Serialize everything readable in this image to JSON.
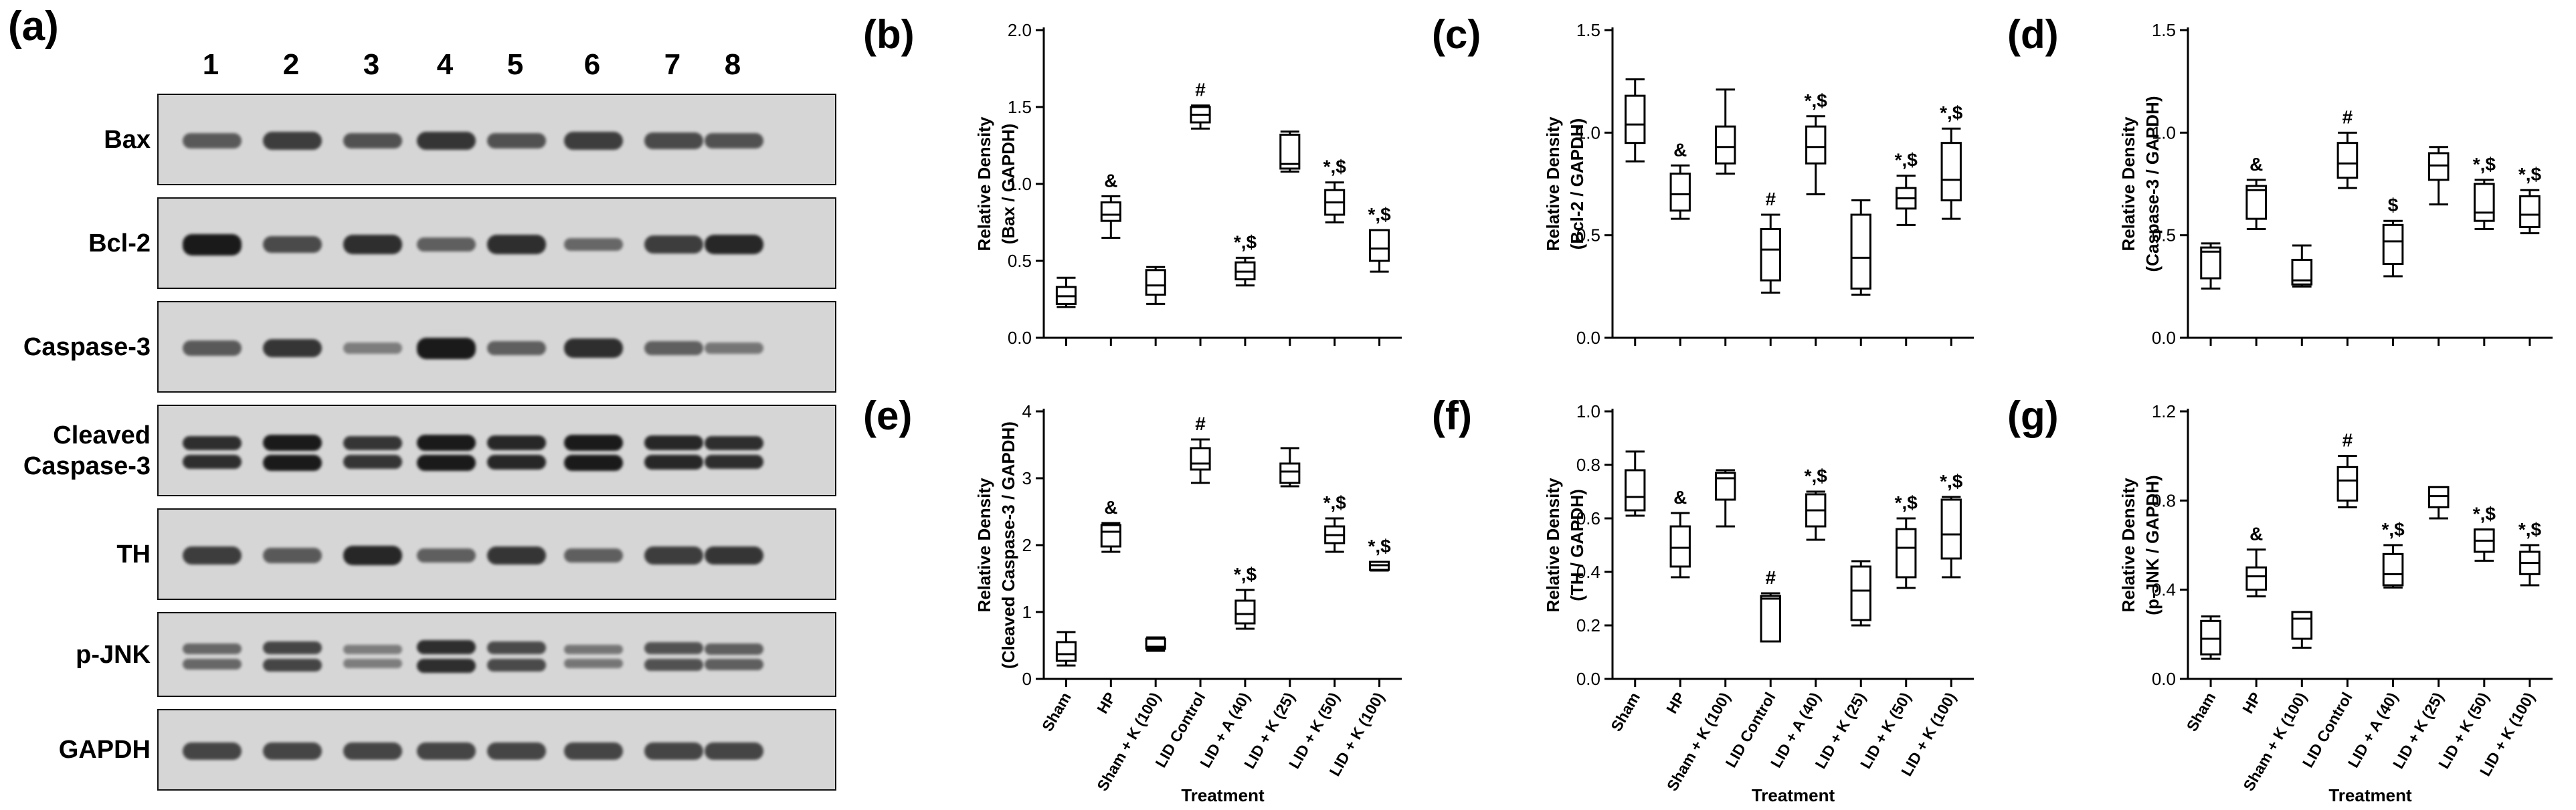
{
  "panel_labels": [
    "(a)",
    "(b)",
    "(c)",
    "(d)",
    "(e)",
    "(f)",
    "(g)"
  ],
  "western_blot": {
    "lanes": [
      "1",
      "2",
      "3",
      "4",
      "5",
      "6",
      "7",
      "8"
    ],
    "rows": [
      {
        "label": "Bax",
        "intensity": [
          0.55,
          0.75,
          0.6,
          0.8,
          0.6,
          0.75,
          0.65,
          0.6
        ]
      },
      {
        "label": "Bcl-2",
        "intensity": [
          1.0,
          0.65,
          0.85,
          0.5,
          0.85,
          0.45,
          0.75,
          0.9
        ]
      },
      {
        "label": "Caspase-3",
        "intensity": [
          0.55,
          0.8,
          0.3,
          1.0,
          0.5,
          0.85,
          0.5,
          0.35
        ]
      },
      {
        "label": "Cleaved\nCaspase-3",
        "intensity": [
          0.85,
          1.0,
          0.8,
          1.0,
          0.9,
          1.0,
          0.9,
          0.85
        ],
        "double": true
      },
      {
        "label": "TH",
        "intensity": [
          0.75,
          0.55,
          0.9,
          0.5,
          0.8,
          0.5,
          0.75,
          0.8
        ]
      },
      {
        "label": "p-JNK",
        "intensity": [
          0.45,
          0.7,
          0.3,
          0.85,
          0.65,
          0.35,
          0.6,
          0.5
        ],
        "double": true
      },
      {
        "label": "GAPDH",
        "intensity": [
          0.7,
          0.7,
          0.7,
          0.7,
          0.7,
          0.7,
          0.7,
          0.7
        ]
      }
    ]
  },
  "chart_data": [
    {
      "panel": "(b)",
      "type": "box",
      "ylabel": "Relative Density\n(Bax / GAPDH)",
      "xlabel": "",
      "ylim": [
        0,
        2.0
      ],
      "yticks": [
        "0.0",
        "0.5",
        "1.0",
        "1.5",
        "2.0"
      ],
      "categories": [
        "Sham",
        "HP",
        "Sham + K (100)",
        "LID Control",
        "LID + A (40)",
        "LID + K (25)",
        "LID + K (50)",
        "LID + K (100)"
      ],
      "boxes": [
        {
          "min": 0.2,
          "q1": 0.22,
          "median": 0.27,
          "q3": 0.33,
          "max": 0.39
        },
        {
          "min": 0.65,
          "q1": 0.76,
          "median": 0.8,
          "q3": 0.88,
          "max": 0.92
        },
        {
          "min": 0.22,
          "q1": 0.28,
          "median": 0.34,
          "q3": 0.44,
          "max": 0.46
        },
        {
          "min": 1.36,
          "q1": 1.4,
          "median": 1.45,
          "q3": 1.5,
          "max": 1.51
        },
        {
          "min": 0.34,
          "q1": 0.38,
          "median": 0.43,
          "q3": 0.49,
          "max": 0.52
        },
        {
          "min": 1.08,
          "q1": 1.1,
          "median": 1.13,
          "q3": 1.32,
          "max": 1.34
        },
        {
          "min": 0.75,
          "q1": 0.8,
          "median": 0.88,
          "q3": 0.96,
          "max": 1.01
        },
        {
          "min": 0.43,
          "q1": 0.5,
          "median": 0.58,
          "q3": 0.7,
          "max": 0.7
        }
      ],
      "markers": [
        "",
        "&",
        "",
        "#",
        "*,$",
        "",
        "*,$",
        "*,$"
      ]
    },
    {
      "panel": "(c)",
      "type": "box",
      "ylabel": "Relative Density\n(Bcl-2 / GAPDH)",
      "xlabel": "",
      "ylim": [
        0,
        1.5
      ],
      "yticks": [
        "0.0",
        "0.5",
        "1.0",
        "1.5"
      ],
      "categories": [
        "Sham",
        "HP",
        "Sham + K (100)",
        "LID Control",
        "LID + A (40)",
        "LID + K (25)",
        "LID + K (50)",
        "LID + K (100)"
      ],
      "boxes": [
        {
          "min": 0.86,
          "q1": 0.95,
          "median": 1.04,
          "q3": 1.18,
          "max": 1.26
        },
        {
          "min": 0.58,
          "q1": 0.62,
          "median": 0.7,
          "q3": 0.8,
          "max": 0.84
        },
        {
          "min": 0.8,
          "q1": 0.85,
          "median": 0.93,
          "q3": 1.03,
          "max": 1.21
        },
        {
          "min": 0.22,
          "q1": 0.28,
          "median": 0.43,
          "q3": 0.53,
          "max": 0.6
        },
        {
          "min": 0.7,
          "q1": 0.85,
          "median": 0.93,
          "q3": 1.03,
          "max": 1.08
        },
        {
          "min": 0.21,
          "q1": 0.24,
          "median": 0.39,
          "q3": 0.6,
          "max": 0.67
        },
        {
          "min": 0.55,
          "q1": 0.63,
          "median": 0.68,
          "q3": 0.73,
          "max": 0.79
        },
        {
          "min": 0.58,
          "q1": 0.67,
          "median": 0.77,
          "q3": 0.95,
          "max": 1.02
        }
      ],
      "markers": [
        "",
        "&",
        "",
        "#",
        "*,$",
        "",
        "*,$",
        "*,$"
      ]
    },
    {
      "panel": "(d)",
      "type": "box",
      "ylabel": "Relative Density\n(Caspase-3 / GAPDH)",
      "xlabel": "",
      "ylim": [
        0,
        1.5
      ],
      "yticks": [
        "0.0",
        "0.5",
        "1.0",
        "1.5"
      ],
      "categories": [
        "Sham",
        "HP",
        "Sham + K (100)",
        "LID Control",
        "LID + A (40)",
        "LID + K (25)",
        "LID + K (50)",
        "LID + K (100)"
      ],
      "boxes": [
        {
          "min": 0.24,
          "q1": 0.29,
          "median": 0.42,
          "q3": 0.44,
          "max": 0.46
        },
        {
          "min": 0.53,
          "q1": 0.58,
          "median": 0.72,
          "q3": 0.74,
          "max": 0.77
        },
        {
          "min": 0.25,
          "q1": 0.26,
          "median": 0.28,
          "q3": 0.38,
          "max": 0.45
        },
        {
          "min": 0.73,
          "q1": 0.78,
          "median": 0.85,
          "q3": 0.95,
          "max": 1.0
        },
        {
          "min": 0.3,
          "q1": 0.36,
          "median": 0.47,
          "q3": 0.55,
          "max": 0.57
        },
        {
          "min": 0.65,
          "q1": 0.77,
          "median": 0.84,
          "q3": 0.9,
          "max": 0.93
        },
        {
          "min": 0.53,
          "q1": 0.57,
          "median": 0.61,
          "q3": 0.75,
          "max": 0.77
        },
        {
          "min": 0.51,
          "q1": 0.54,
          "median": 0.6,
          "q3": 0.69,
          "max": 0.72
        }
      ],
      "markers": [
        "",
        "&",
        "",
        "#",
        "$",
        "",
        "*,$",
        "*,$"
      ]
    },
    {
      "panel": "(e)",
      "type": "box",
      "ylabel": "Relative Density\n(Cleaved Caspase-3 / GAPDH)",
      "xlabel": "Treatment",
      "ylim": [
        0,
        4
      ],
      "yticks": [
        "0",
        "1",
        "2",
        "3",
        "4"
      ],
      "categories": [
        "Sham",
        "HP",
        "Sham + K (100)",
        "LID Control",
        "LID + A (40)",
        "LID + K (25)",
        "LID + K (50)",
        "LID + K (100)"
      ],
      "boxes": [
        {
          "min": 0.2,
          "q1": 0.27,
          "median": 0.37,
          "q3": 0.55,
          "max": 0.7
        },
        {
          "min": 1.9,
          "q1": 1.98,
          "median": 2.2,
          "q3": 2.3,
          "max": 2.33
        },
        {
          "min": 0.42,
          "q1": 0.45,
          "median": 0.48,
          "q3": 0.6,
          "max": 0.62
        },
        {
          "min": 2.93,
          "q1": 3.13,
          "median": 3.22,
          "q3": 3.45,
          "max": 3.58
        },
        {
          "min": 0.75,
          "q1": 0.83,
          "median": 0.97,
          "q3": 1.17,
          "max": 1.33
        },
        {
          "min": 2.88,
          "q1": 2.93,
          "median": 3.1,
          "q3": 3.22,
          "max": 3.45
        },
        {
          "min": 1.9,
          "q1": 2.03,
          "median": 2.15,
          "q3": 2.28,
          "max": 2.4
        },
        {
          "min": 1.62,
          "q1": 1.63,
          "median": 1.7,
          "q3": 1.75,
          "max": 1.75
        }
      ],
      "markers": [
        "",
        "&",
        "",
        "#",
        "*,$",
        "",
        "*,$",
        "*,$"
      ]
    },
    {
      "panel": "(f)",
      "type": "box",
      "ylabel": "Relative Density\n(TH / GAPDH)",
      "xlabel": "Treatment",
      "ylim": [
        0,
        1.0
      ],
      "yticks": [
        "0.0",
        "0.2",
        "0.4",
        "0.6",
        "0.8",
        "1.0"
      ],
      "categories": [
        "Sham",
        "HP",
        "Sham + K (100)",
        "LID Control",
        "LID + A (40)",
        "LID + K (25)",
        "LID + K (50)",
        "LID + K (100)"
      ],
      "boxes": [
        {
          "min": 0.61,
          "q1": 0.63,
          "median": 0.68,
          "q3": 0.78,
          "max": 0.85
        },
        {
          "min": 0.38,
          "q1": 0.42,
          "median": 0.49,
          "q3": 0.57,
          "max": 0.62
        },
        {
          "min": 0.57,
          "q1": 0.67,
          "median": 0.75,
          "q3": 0.77,
          "max": 0.78
        },
        {
          "min": 0.14,
          "q1": 0.14,
          "median": 0.3,
          "q3": 0.31,
          "max": 0.32
        },
        {
          "min": 0.52,
          "q1": 0.57,
          "median": 0.63,
          "q3": 0.69,
          "max": 0.7
        },
        {
          "min": 0.2,
          "q1": 0.22,
          "median": 0.33,
          "q3": 0.42,
          "max": 0.44
        },
        {
          "min": 0.34,
          "q1": 0.38,
          "median": 0.49,
          "q3": 0.56,
          "max": 0.6
        },
        {
          "min": 0.38,
          "q1": 0.45,
          "median": 0.54,
          "q3": 0.67,
          "max": 0.68
        }
      ],
      "markers": [
        "",
        "&",
        "",
        "#",
        "*,$",
        "",
        "*,$",
        "*,$"
      ]
    },
    {
      "panel": "(g)",
      "type": "box",
      "ylabel": "Relative Density\n(p-JNK / GAPDH)",
      "xlabel": "Treatment",
      "ylim": [
        0,
        1.2
      ],
      "yticks": [
        "0.0",
        "0.4",
        "0.8",
        "1.2"
      ],
      "categories": [
        "Sham",
        "HP",
        "Sham + K (100)",
        "LID Control",
        "LID + A (40)",
        "LID + K (25)",
        "LID + K (50)",
        "LID + K (100)"
      ],
      "boxes": [
        {
          "min": 0.09,
          "q1": 0.11,
          "median": 0.18,
          "q3": 0.26,
          "max": 0.28
        },
        {
          "min": 0.37,
          "q1": 0.4,
          "median": 0.46,
          "q3": 0.5,
          "max": 0.58
        },
        {
          "min": 0.14,
          "q1": 0.18,
          "median": 0.27,
          "q3": 0.3,
          "max": 0.3
        },
        {
          "min": 0.77,
          "q1": 0.8,
          "median": 0.89,
          "q3": 0.95,
          "max": 1.0
        },
        {
          "min": 0.41,
          "q1": 0.42,
          "median": 0.47,
          "q3": 0.56,
          "max": 0.6
        },
        {
          "min": 0.72,
          "q1": 0.77,
          "median": 0.82,
          "q3": 0.86,
          "max": 0.86
        },
        {
          "min": 0.53,
          "q1": 0.57,
          "median": 0.62,
          "q3": 0.67,
          "max": 0.67
        },
        {
          "min": 0.42,
          "q1": 0.47,
          "median": 0.52,
          "q3": 0.57,
          "max": 0.6
        }
      ],
      "markers": [
        "",
        "&",
        "",
        "#",
        "*,$",
        "",
        "*,$",
        "*,$"
      ]
    }
  ]
}
